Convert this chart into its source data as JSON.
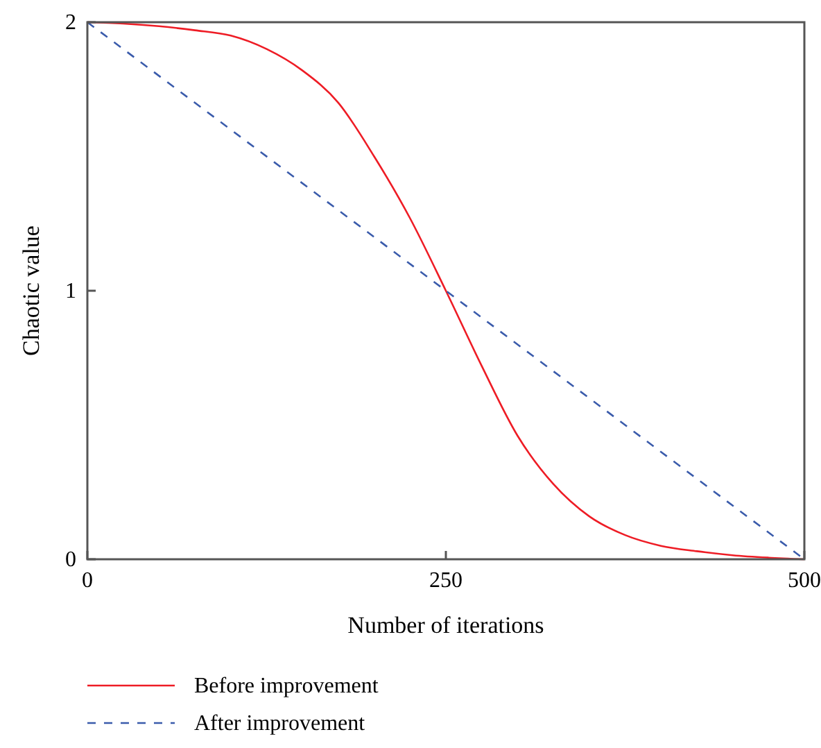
{
  "chart_data": {
    "type": "line",
    "xlabel": "Number of iterations",
    "ylabel": "Chaotic value",
    "xlim": [
      0,
      500
    ],
    "ylim": [
      0,
      2
    ],
    "xticks": [
      0,
      250,
      500
    ],
    "yticks": [
      0,
      1,
      2
    ],
    "legend": "bottom",
    "grid": false,
    "marker": "none",
    "series": [
      {
        "name": "Before improvement",
        "color": "#ee1c25",
        "line_style": "solid",
        "x": [
          0,
          25,
          50,
          75,
          100,
          125,
          150,
          175,
          200,
          225,
          250,
          275,
          300,
          325,
          350,
          375,
          400,
          425,
          450,
          475,
          500
        ],
        "values": [
          2,
          1.995,
          1.985,
          1.97,
          1.95,
          1.9,
          1.82,
          1.7,
          1.5,
          1.27,
          1.0,
          0.72,
          0.46,
          0.28,
          0.16,
          0.09,
          0.05,
          0.03,
          0.015,
          0.006,
          0
        ]
      },
      {
        "name": "After improvement",
        "color": "#3a5bab",
        "line_style": "dashed",
        "x": [
          0,
          500
        ],
        "values": [
          2,
          0
        ]
      }
    ]
  }
}
